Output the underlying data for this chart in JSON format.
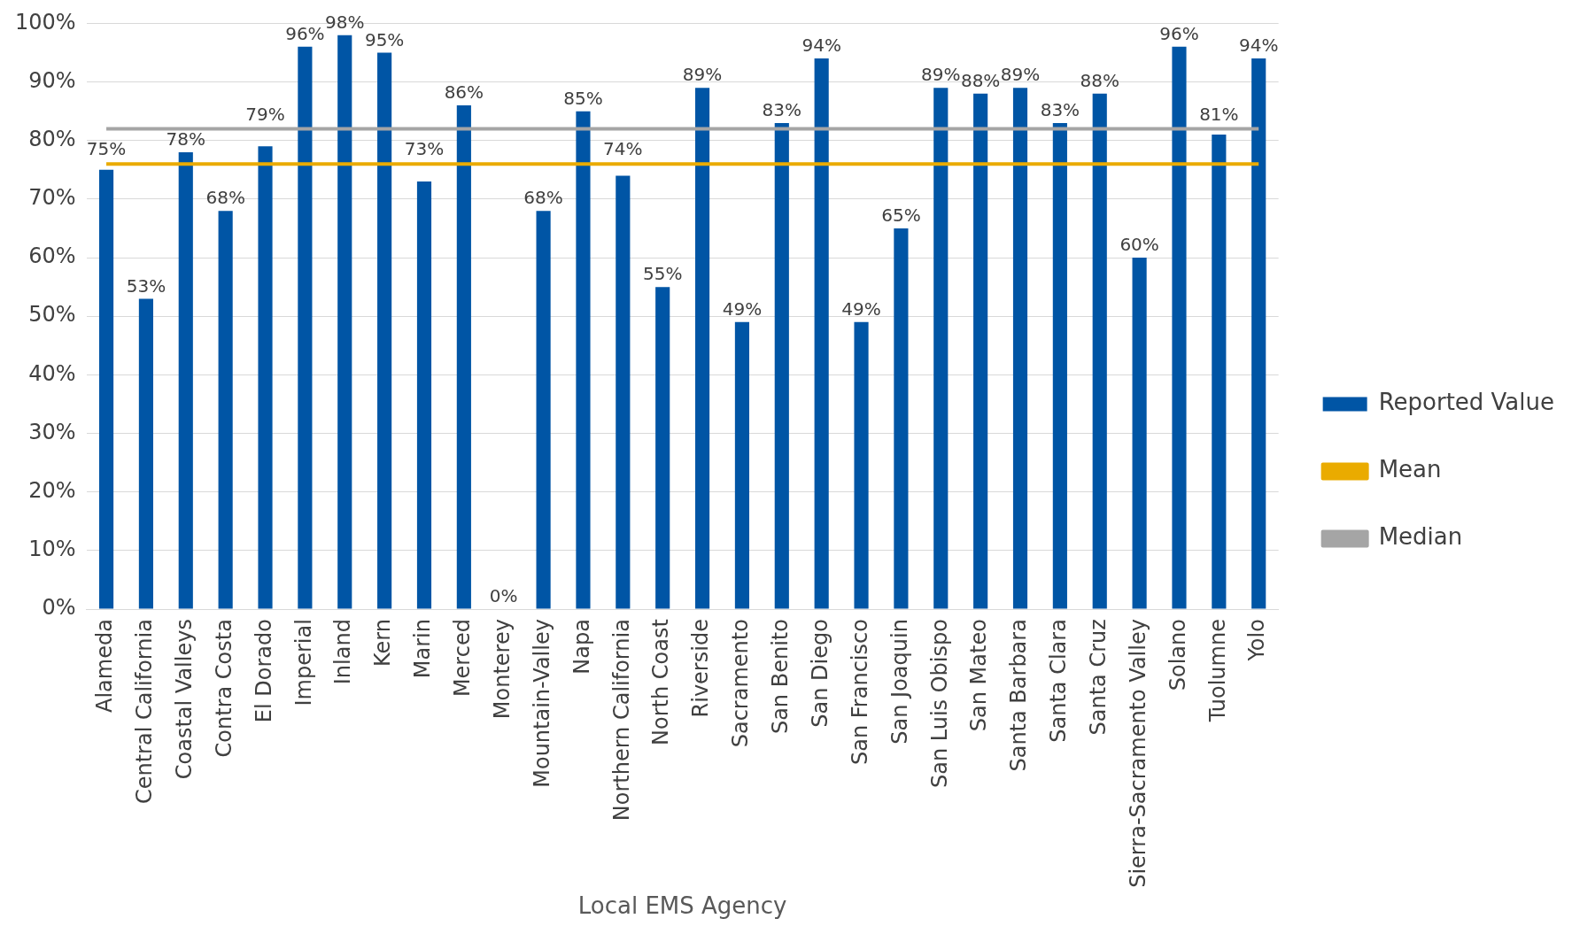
{
  "chart_data": {
    "type": "bar",
    "xlabel": "Local EMS Agency",
    "categories": [
      "Alameda",
      "Central California",
      "Coastal Valleys",
      "Contra Costa",
      "El Dorado",
      "Imperial",
      "Inland",
      "Kern",
      "Marin",
      "Merced",
      "Monterey",
      "Mountain-Valley",
      "Napa",
      "Northern California",
      "North Coast",
      "Riverside",
      "Sacramento",
      "San Benito",
      "San Diego",
      "San Francisco",
      "San Joaquin",
      "San Luis Obispo",
      "San Mateo",
      "Santa Barbara",
      "Santa Clara",
      "Santa Cruz",
      "Sierra-Sacramento Valley",
      "Solano",
      "Tuolumne",
      "Yolo"
    ],
    "series": [
      {
        "name": "Reported Value",
        "color": "#0055a5",
        "values": [
          75,
          53,
          78,
          68,
          79,
          96,
          98,
          95,
          73,
          86,
          0,
          68,
          85,
          74,
          55,
          89,
          49,
          83,
          94,
          49,
          65,
          89,
          88,
          89,
          83,
          88,
          60,
          96,
          81,
          94
        ],
        "value_labels": [
          "75%",
          "53%",
          "78%",
          "68%",
          "79%",
          "96%",
          "98%",
          "95%",
          "73%",
          "86%",
          "0%",
          "68%",
          "85%",
          "74%",
          "55%",
          "89%",
          "49%",
          "83%",
          "94%",
          "49%",
          "65%",
          "89%",
          "88%",
          "89%",
          "83%",
          "88%",
          "60%",
          "96%",
          "81%",
          "94%"
        ]
      },
      {
        "name": "Mean",
        "type": "line",
        "color": "#eaab00",
        "values": [
          76,
          76,
          76,
          76,
          76,
          76,
          76,
          76,
          76,
          76,
          76,
          76,
          76,
          76,
          76,
          76,
          76,
          76,
          76,
          76,
          76,
          76,
          76,
          76,
          76,
          76,
          76,
          76,
          76,
          76
        ]
      },
      {
        "name": "Median",
        "type": "line",
        "color": "#a5a5a5",
        "values": [
          82,
          82,
          82,
          82,
          82,
          82,
          82,
          82,
          82,
          82,
          82,
          82,
          82,
          82,
          82,
          82,
          82,
          82,
          82,
          82,
          82,
          82,
          82,
          82,
          82,
          82,
          82,
          82,
          82,
          82
        ]
      }
    ],
    "ylim": [
      0,
      100
    ],
    "yticks": [
      {
        "value": 0,
        "label": "0%"
      },
      {
        "value": 10,
        "label": "10%"
      },
      {
        "value": 20,
        "label": "20%"
      },
      {
        "value": 30,
        "label": "30%"
      },
      {
        "value": 40,
        "label": "40%"
      },
      {
        "value": 50,
        "label": "50%"
      },
      {
        "value": 60,
        "label": "60%"
      },
      {
        "value": 70,
        "label": "70%"
      },
      {
        "value": 80,
        "label": "80%"
      },
      {
        "value": 90,
        "label": "90%"
      },
      {
        "value": 100,
        "label": "100%"
      }
    ],
    "grid": "y",
    "legend": "right",
    "marker": "none"
  }
}
